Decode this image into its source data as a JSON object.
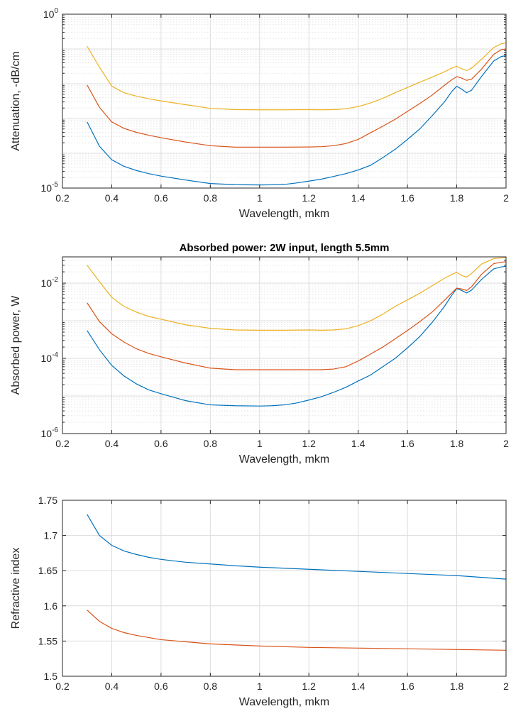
{
  "chart_data": [
    {
      "type": "line",
      "title": "",
      "xlabel": "Wavelength, mkm",
      "ylabel": "Attenuation, -dB/cm",
      "xlim": [
        0.2,
        2
      ],
      "ylim": [
        1e-05,
        1
      ],
      "yscale": "log",
      "xticks": [
        "0.2",
        "0.4",
        "0.6",
        "0.8",
        "1",
        "1.2",
        "1.4",
        "1.6",
        "1.8",
        "2"
      ],
      "yticks": [
        {
          "value": 1e-05,
          "base": "10",
          "exp": "-5"
        },
        {
          "value": 1,
          "base": "10",
          "exp": "0"
        }
      ],
      "grid": true,
      "series_colors": [
        "#0072BD",
        "#D95319",
        "#EDB120"
      ],
      "series": [
        {
          "x": [
            0.3,
            0.35,
            0.4,
            0.45,
            0.5,
            0.55,
            0.6,
            0.7,
            0.8,
            0.9,
            1.0,
            1.05,
            1.1,
            1.15,
            1.2,
            1.25,
            1.3,
            1.35,
            1.4,
            1.45,
            1.5,
            1.55,
            1.6,
            1.65,
            1.7,
            1.75,
            1.78,
            1.8,
            1.82,
            1.84,
            1.86,
            1.9,
            1.95,
            1.98,
            2.0
          ],
          "y": [
            0.0008,
            0.00016,
            6.5e-05,
            4.2e-05,
            3.2e-05,
            2.6e-05,
            2.2e-05,
            1.7e-05,
            1.35e-05,
            1.25e-05,
            1.23e-05,
            1.24e-05,
            1.27e-05,
            1.4e-05,
            1.58e-05,
            1.8e-05,
            2.15e-05,
            2.6e-05,
            3.3e-05,
            4.5e-05,
            7.5e-05,
            0.00013,
            0.00025,
            0.0005,
            0.0012,
            0.003,
            0.006,
            0.0085,
            0.007,
            0.0055,
            0.0065,
            0.016,
            0.045,
            0.06,
            0.065
          ]
        },
        {
          "x": [
            0.3,
            0.35,
            0.4,
            0.45,
            0.5,
            0.55,
            0.6,
            0.7,
            0.8,
            0.9,
            1.0,
            1.1,
            1.2,
            1.25,
            1.3,
            1.35,
            1.4,
            1.45,
            1.5,
            1.55,
            1.6,
            1.65,
            1.7,
            1.75,
            1.78,
            1.8,
            1.82,
            1.84,
            1.86,
            1.9,
            1.95,
            1.98,
            2.0
          ],
          "y": [
            0.0092,
            0.0021,
            0.0008,
            0.00052,
            0.0004,
            0.00033,
            0.00028,
            0.00021,
            0.000165,
            0.00015,
            0.00015,
            0.00015,
            0.000152,
            0.000155,
            0.000165,
            0.00019,
            0.00025,
            0.00039,
            0.0006,
            0.00095,
            0.0016,
            0.0027,
            0.0047,
            0.009,
            0.013,
            0.016,
            0.0145,
            0.0125,
            0.0135,
            0.026,
            0.07,
            0.095,
            0.1
          ]
        },
        {
          "x": [
            0.3,
            0.35,
            0.4,
            0.45,
            0.5,
            0.55,
            0.6,
            0.7,
            0.8,
            0.9,
            1.0,
            1.1,
            1.2,
            1.25,
            1.3,
            1.35,
            1.4,
            1.45,
            1.5,
            1.55,
            1.6,
            1.65,
            1.7,
            1.75,
            1.78,
            1.8,
            1.82,
            1.84,
            1.86,
            1.9,
            1.95,
            1.98,
            2.0
          ],
          "y": [
            0.12,
            0.03,
            0.0085,
            0.0055,
            0.0044,
            0.0037,
            0.0032,
            0.0025,
            0.00196,
            0.0018,
            0.00178,
            0.00178,
            0.0018,
            0.00178,
            0.0018,
            0.0019,
            0.0022,
            0.0028,
            0.0038,
            0.0055,
            0.0078,
            0.011,
            0.0155,
            0.022,
            0.028,
            0.032,
            0.027,
            0.024,
            0.028,
            0.05,
            0.11,
            0.14,
            0.15
          ]
        }
      ]
    },
    {
      "type": "line",
      "title": "Absorbed power: 2W input, length 5.5mm",
      "xlabel": "Wavelength, mkm",
      "ylabel": "Absorbed power, W",
      "xlim": [
        0.2,
        2
      ],
      "ylim": [
        1e-06,
        0.05
      ],
      "yscale": "log",
      "xticks": [
        "0.2",
        "0.4",
        "0.6",
        "0.8",
        "1",
        "1.2",
        "1.4",
        "1.6",
        "1.8",
        "2"
      ],
      "yticks": [
        {
          "value": 1e-06,
          "base": "10",
          "exp": "-6"
        },
        {
          "value": 0.0001,
          "base": "10",
          "exp": "-4"
        },
        {
          "value": 0.01,
          "base": "10",
          "exp": "-2"
        }
      ],
      "grid": true,
      "series_colors": [
        "#0072BD",
        "#D95319",
        "#EDB120"
      ],
      "series": [
        {
          "x": [
            0.3,
            0.35,
            0.4,
            0.45,
            0.5,
            0.55,
            0.6,
            0.7,
            0.8,
            0.9,
            1.0,
            1.05,
            1.1,
            1.15,
            1.2,
            1.25,
            1.3,
            1.35,
            1.4,
            1.45,
            1.5,
            1.55,
            1.6,
            1.65,
            1.7,
            1.75,
            1.78,
            1.8,
            1.82,
            1.84,
            1.86,
            1.9,
            1.95,
            1.98,
            2.0
          ],
          "y": [
            0.00055,
            0.00017,
            6.5e-05,
            3.4e-05,
            2.1e-05,
            1.45e-05,
            1.15e-05,
            7.5e-06,
            5.8e-06,
            5.5e-06,
            5.4e-06,
            5.5e-06,
            5.8e-06,
            6.5e-06,
            7.8e-06,
            9.5e-06,
            1.25e-05,
            1.7e-05,
            2.5e-05,
            3.6e-05,
            6e-05,
            0.0001,
            0.00019,
            0.00038,
            0.0009,
            0.0024,
            0.0048,
            0.0072,
            0.0064,
            0.0055,
            0.0065,
            0.0125,
            0.024,
            0.027,
            0.028
          ]
        },
        {
          "x": [
            0.3,
            0.35,
            0.4,
            0.45,
            0.5,
            0.55,
            0.6,
            0.7,
            0.8,
            0.9,
            1.0,
            1.1,
            1.2,
            1.25,
            1.3,
            1.35,
            1.4,
            1.45,
            1.5,
            1.55,
            1.6,
            1.65,
            1.7,
            1.75,
            1.78,
            1.8,
            1.82,
            1.84,
            1.86,
            1.9,
            1.95,
            1.98,
            2.0
          ],
          "y": [
            0.003,
            0.00095,
            0.00045,
            0.00027,
            0.00018,
            0.000135,
            0.00011,
            7.5e-05,
            5.5e-05,
            5e-05,
            5e-05,
            5e-05,
            5e-05,
            5e-05,
            5.2e-05,
            6e-05,
            8.5e-05,
            0.00013,
            0.0002,
            0.00033,
            0.00055,
            0.00095,
            0.0017,
            0.0035,
            0.0055,
            0.0074,
            0.007,
            0.0064,
            0.008,
            0.017,
            0.033,
            0.036,
            0.037
          ]
        },
        {
          "x": [
            0.3,
            0.35,
            0.4,
            0.45,
            0.5,
            0.55,
            0.6,
            0.7,
            0.8,
            0.9,
            1.0,
            1.1,
            1.2,
            1.25,
            1.3,
            1.35,
            1.4,
            1.45,
            1.5,
            1.55,
            1.6,
            1.65,
            1.7,
            1.75,
            1.78,
            1.8,
            1.82,
            1.84,
            1.86,
            1.9,
            1.95,
            1.98,
            2.0
          ],
          "y": [
            0.03,
            0.011,
            0.0042,
            0.0024,
            0.0017,
            0.0013,
            0.0011,
            0.00078,
            0.00063,
            0.00057,
            0.00056,
            0.00056,
            0.00057,
            0.00056,
            0.00057,
            0.00061,
            0.00074,
            0.001,
            0.0015,
            0.0024,
            0.0036,
            0.0054,
            0.0085,
            0.0135,
            0.017,
            0.0195,
            0.016,
            0.0145,
            0.018,
            0.032,
            0.045,
            0.047,
            0.048
          ]
        }
      ]
    },
    {
      "type": "line",
      "title": "",
      "xlabel": "Wavelength, mkm",
      "ylabel": "Refractive index",
      "xlim": [
        0.2,
        2
      ],
      "ylim": [
        1.5,
        1.75
      ],
      "yscale": "linear",
      "xticks": [
        "0.2",
        "0.4",
        "0.6",
        "0.8",
        "1",
        "1.2",
        "1.4",
        "1.6",
        "1.8",
        "2"
      ],
      "yticks": [
        {
          "value": 1.5,
          "label": "1.5"
        },
        {
          "value": 1.55,
          "label": "1.55"
        },
        {
          "value": 1.6,
          "label": "1.6"
        },
        {
          "value": 1.65,
          "label": "1.65"
        },
        {
          "value": 1.7,
          "label": "1.7"
        },
        {
          "value": 1.75,
          "label": "1.75"
        }
      ],
      "grid": true,
      "series_colors": [
        "#0072BD",
        "#D95319"
      ],
      "series": [
        {
          "x": [
            0.3,
            0.35,
            0.4,
            0.45,
            0.5,
            0.55,
            0.6,
            0.7,
            0.8,
            0.9,
            1.0,
            1.2,
            1.4,
            1.6,
            1.8,
            2.0
          ],
          "y": [
            1.73,
            1.7,
            1.686,
            1.678,
            1.673,
            1.669,
            1.666,
            1.662,
            1.6595,
            1.657,
            1.655,
            1.652,
            1.649,
            1.646,
            1.643,
            1.638
          ]
        },
        {
          "x": [
            0.3,
            0.35,
            0.4,
            0.45,
            0.5,
            0.55,
            0.6,
            0.7,
            0.8,
            0.9,
            1.0,
            1.2,
            1.4,
            1.6,
            1.8,
            2.0
          ],
          "y": [
            1.594,
            1.578,
            1.568,
            1.562,
            1.558,
            1.555,
            1.552,
            1.549,
            1.546,
            1.5445,
            1.543,
            1.541,
            1.54,
            1.539,
            1.538,
            1.537
          ]
        }
      ]
    }
  ]
}
